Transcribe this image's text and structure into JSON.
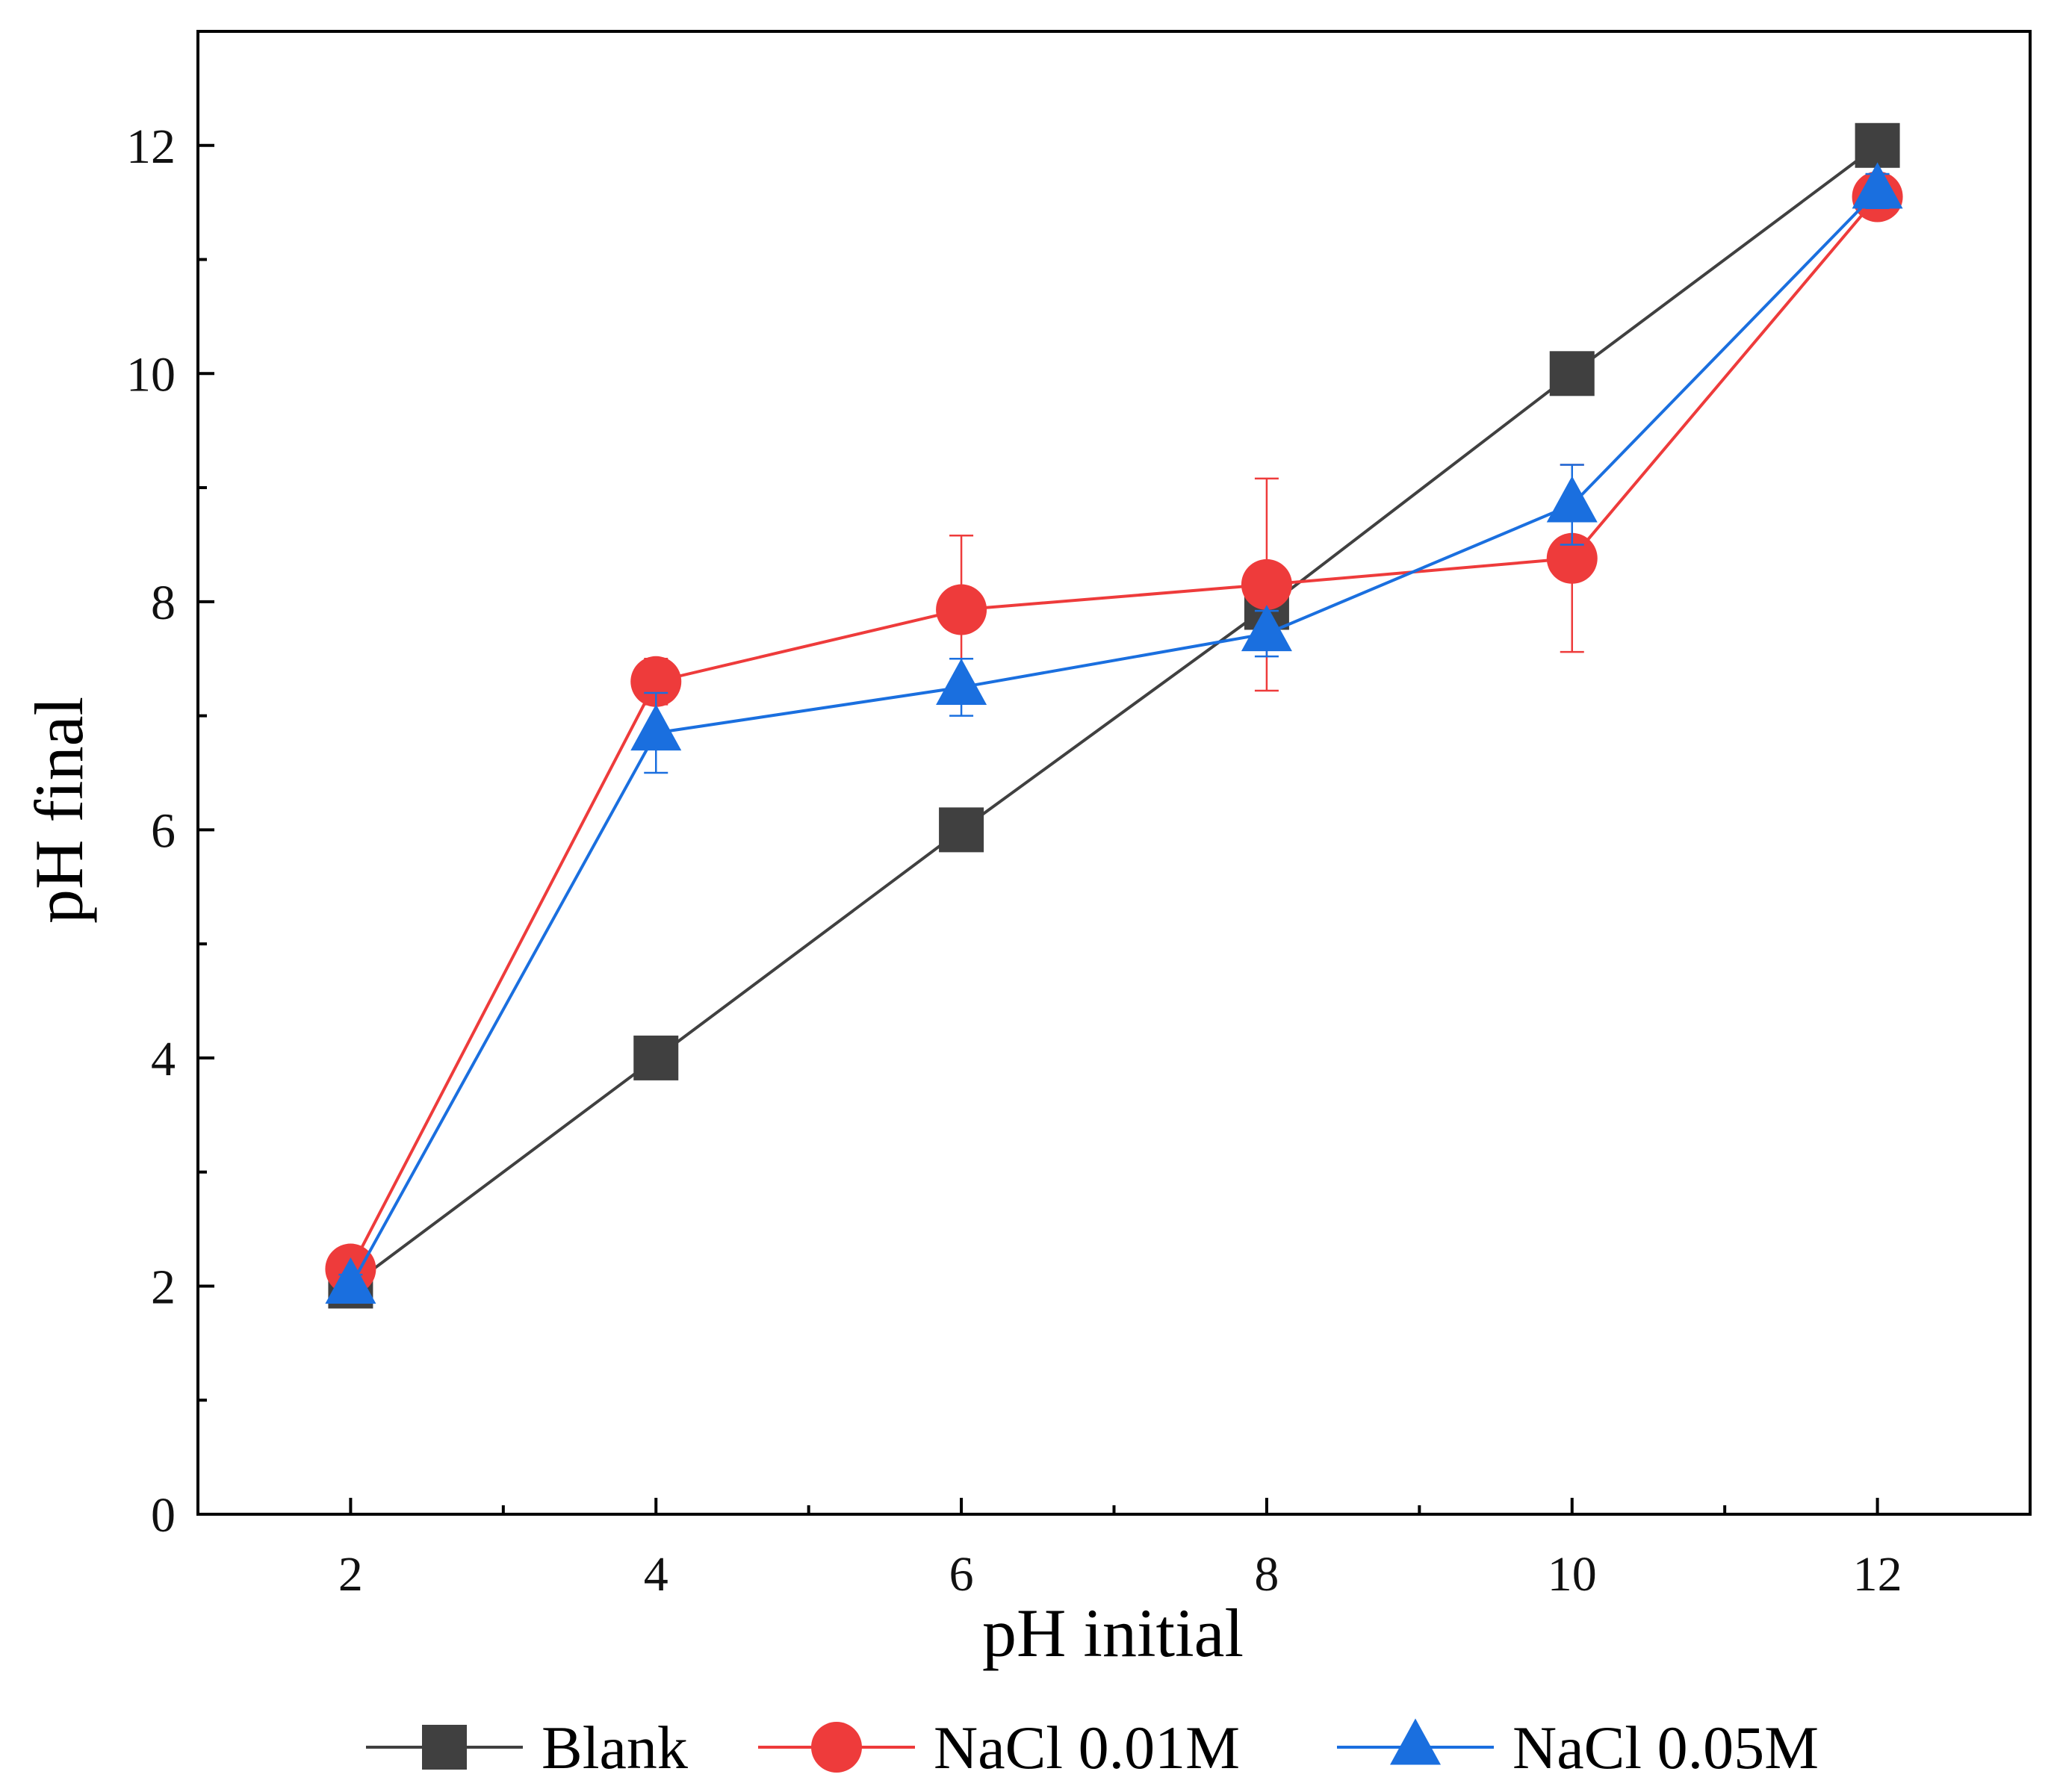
{
  "chart_data": {
    "type": "line",
    "xlabel": "pH initial",
    "ylabel": "pH final",
    "xlim": [
      1,
      13
    ],
    "ylim": [
      0,
      13
    ],
    "xticks": [
      2,
      4,
      6,
      8,
      10,
      12
    ],
    "yticks": [
      0,
      2,
      4,
      6,
      8,
      10,
      12
    ],
    "x_minor_ticks": [
      3,
      5,
      7,
      9,
      11
    ],
    "y_minor_ticks": [
      1,
      3,
      5,
      7,
      9,
      11
    ],
    "grid": false,
    "legend_position": "bottom",
    "x": [
      2,
      4,
      6,
      8,
      10,
      12
    ],
    "series": [
      {
        "name": "Blank",
        "marker": "square",
        "color": "#404040",
        "values": [
          2.0,
          4.0,
          6.0,
          7.95,
          10.0,
          12.0
        ],
        "errors": [
          0,
          0,
          0,
          0,
          0,
          0
        ]
      },
      {
        "name": "NaCl 0.01M",
        "marker": "circle",
        "color": "#ee3b3b",
        "values": [
          2.15,
          7.3,
          7.93,
          8.15,
          8.38,
          11.55
        ],
        "errors": [
          0.1,
          0.2,
          0.65,
          0.93,
          0.82,
          0.18
        ]
      },
      {
        "name": "NaCl 0.05M",
        "marker": "triangle",
        "color": "#1a6fdf",
        "values": [
          2.0,
          6.85,
          7.25,
          7.72,
          8.85,
          11.6
        ],
        "errors": [
          0.1,
          0.35,
          0.25,
          0.2,
          0.35,
          0.15
        ]
      }
    ]
  }
}
